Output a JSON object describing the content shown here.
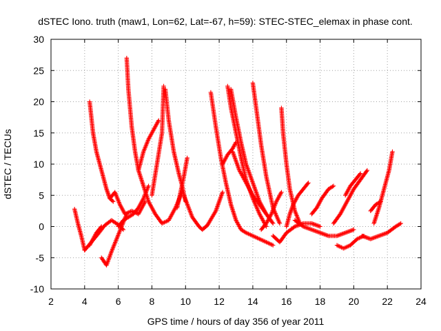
{
  "chart_data": {
    "type": "scatter",
    "title": "dSTEC Iono. truth (maw1, Lon=62, Lat=-67, h=59): STEC-STEC_elemax in phase cont.",
    "xlabel": "GPS time / hours of day 356 of year 2011",
    "ylabel": "dSTEC  / TECUs",
    "xlim": [
      2,
      24
    ],
    "ylim": [
      -10,
      30
    ],
    "xticks": [
      2,
      4,
      6,
      8,
      10,
      12,
      14,
      16,
      18,
      20,
      22,
      24
    ],
    "yticks": [
      -10,
      -5,
      0,
      5,
      10,
      15,
      20,
      25,
      30
    ],
    "grid": true,
    "marker": "plus",
    "color": "#ff0000",
    "series": [
      {
        "x": [
          3.4,
          3.6,
          3.8,
          4.0
        ],
        "y": [
          2.8,
          0.5,
          -1.5,
          -3.8
        ]
      },
      {
        "x": [
          4.0,
          4.4,
          4.8,
          5.2,
          5.6,
          6.0,
          6.3
        ],
        "y": [
          -3.8,
          -2.5,
          -1.2,
          0.2,
          1.0,
          0.3,
          -0.5
        ]
      },
      {
        "x": [
          4.3,
          4.5,
          4.7,
          4.9,
          5.1,
          5.3,
          5.5,
          5.7
        ],
        "y": [
          20.0,
          15.0,
          12.0,
          10.0,
          8.0,
          6.0,
          4.5,
          4.0
        ]
      },
      {
        "x": [
          4.3,
          4.5,
          4.7,
          5.0
        ],
        "y": [
          -3.0,
          -2.0,
          -1.0,
          0.0
        ]
      },
      {
        "x": [
          5.0,
          5.3,
          5.6,
          5.9,
          6.2,
          6.5
        ],
        "y": [
          -5.0,
          -6.2,
          -4.0,
          -2.0,
          0.0,
          2.0
        ]
      },
      {
        "x": [
          5.5,
          5.8,
          6.1,
          6.4,
          6.8,
          7.2,
          7.6
        ],
        "y": [
          4.5,
          5.5,
          3.5,
          2.0,
          2.5,
          2.0,
          4.0
        ]
      },
      {
        "x": [
          6.5,
          6.6,
          6.8,
          7.0,
          7.2,
          7.5,
          7.8,
          8.2,
          8.6,
          9.0,
          9.4,
          9.8
        ],
        "y": [
          27.0,
          22.0,
          16.0,
          12.0,
          9.0,
          6.5,
          4.0,
          2.0,
          0.5,
          1.0,
          3.0,
          5.5
        ]
      },
      {
        "x": [
          6.0,
          6.3,
          6.6,
          6.9,
          7.2,
          7.5,
          7.8
        ],
        "y": [
          0.0,
          1.0,
          1.5,
          2.0,
          3.0,
          4.5,
          6.5
        ]
      },
      {
        "x": [
          7.2,
          7.5,
          7.8,
          8.1,
          8.4
        ],
        "y": [
          9.0,
          12.0,
          14.0,
          15.5,
          17.0
        ]
      },
      {
        "x": [
          8.0,
          8.3,
          8.6,
          8.7
        ],
        "y": [
          5.0,
          10.0,
          15.0,
          22.5
        ]
      },
      {
        "x": [
          8.8,
          9.0,
          9.3,
          9.6,
          9.8,
          10.0
        ],
        "y": [
          22.0,
          17.0,
          12.0,
          8.5,
          6.5,
          4.0
        ]
      },
      {
        "x": [
          9.5,
          9.7,
          9.9,
          10.1
        ],
        "y": [
          3.0,
          5.5,
          8.0,
          11.0
        ]
      },
      {
        "x": [
          9.9,
          10.4,
          10.8,
          11.0,
          11.3,
          11.8,
          12.2
        ],
        "y": [
          5.0,
          1.5,
          0.0,
          -0.5,
          0.2,
          2.5,
          5.5
        ]
      },
      {
        "x": [
          11.5,
          11.8,
          12.1,
          12.4,
          12.7,
          13.0,
          13.3,
          13.6,
          14.0,
          14.4,
          14.8,
          15.2
        ],
        "y": [
          21.5,
          16.0,
          11.0,
          7.0,
          3.5,
          1.0,
          -0.5,
          -1.0,
          -1.5,
          -2.0,
          -2.5,
          -3.0
        ]
      },
      {
        "x": [
          12.5,
          12.7,
          13.0,
          13.3,
          13.6,
          14.0,
          14.4,
          14.8
        ],
        "y": [
          22.5,
          19.0,
          15.0,
          11.0,
          7.5,
          4.5,
          2.0,
          0.0
        ]
      },
      {
        "x": [
          12.7,
          13.0,
          13.3,
          13.6,
          14.0,
          14.4,
          14.8,
          15.2
        ],
        "y": [
          22.0,
          17.5,
          13.5,
          10.0,
          7.0,
          4.0,
          2.0,
          0.5
        ]
      },
      {
        "x": [
          12.8,
          13.2,
          13.6,
          14.0,
          14.4,
          14.8
        ],
        "y": [
          12.0,
          9.0,
          7.0,
          5.0,
          3.5,
          2.0
        ]
      },
      {
        "x": [
          12.2,
          12.5,
          12.8,
          13.0
        ],
        "y": [
          10.0,
          11.5,
          12.5,
          13.5
        ]
      },
      {
        "x": [
          14.0,
          14.2,
          14.5,
          14.8,
          15.2,
          15.6
        ],
        "y": [
          23.0,
          19.0,
          13.0,
          8.0,
          3.0,
          0.5
        ]
      },
      {
        "x": [
          14.5,
          14.8,
          15.1,
          15.4,
          15.7
        ],
        "y": [
          -0.5,
          0.5,
          2.0,
          4.0,
          5.5
        ]
      },
      {
        "x": [
          15.7,
          15.8,
          16.0,
          16.2,
          16.5,
          16.8
        ],
        "y": [
          19.0,
          15.0,
          10.0,
          6.0,
          2.5,
          0.5
        ]
      },
      {
        "x": [
          16.0,
          16.2,
          16.4,
          16.7,
          17.0,
          17.3
        ],
        "y": [
          0.0,
          2.0,
          3.5,
          5.0,
          6.0,
          7.0
        ]
      },
      {
        "x": [
          15.2,
          15.6,
          16.0,
          16.5,
          17.0,
          17.5,
          18.0
        ],
        "y": [
          -1.5,
          -2.5,
          -1.0,
          0.0,
          0.5,
          0.5,
          0.0
        ]
      },
      {
        "x": [
          16.5,
          17.0,
          17.5,
          18.0,
          18.5,
          19.0,
          19.5,
          20.0
        ],
        "y": [
          1.0,
          0.0,
          -0.5,
          -1.0,
          -1.5,
          -1.5,
          -1.0,
          -0.5
        ]
      },
      {
        "x": [
          17.5,
          17.8,
          18.1,
          18.5,
          18.8
        ],
        "y": [
          2.0,
          3.0,
          4.5,
          6.0,
          6.5
        ]
      },
      {
        "x": [
          19.0,
          19.4,
          19.8,
          20.2,
          20.6
        ],
        "y": [
          -3.0,
          -3.5,
          -3.0,
          -2.0,
          -1.5
        ]
      },
      {
        "x": [
          18.8,
          19.2,
          19.6,
          20.0,
          20.4,
          20.8
        ],
        "y": [
          0.5,
          2.0,
          4.0,
          6.0,
          7.5,
          9.0
        ]
      },
      {
        "x": [
          19.5,
          19.8,
          20.1,
          20.4
        ],
        "y": [
          5.0,
          6.5,
          7.5,
          8.5
        ]
      },
      {
        "x": [
          20.5,
          21.0,
          21.5,
          22.0,
          22.5,
          22.8
        ],
        "y": [
          -1.5,
          -2.0,
          -1.5,
          -1.0,
          0.0,
          0.5
        ]
      },
      {
        "x": [
          21.2,
          21.5,
          21.8,
          22.1,
          22.3
        ],
        "y": [
          0.5,
          3.0,
          6.0,
          9.0,
          12.0
        ]
      },
      {
        "x": [
          21.0,
          21.3,
          21.6
        ],
        "y": [
          2.5,
          3.5,
          4.0
        ]
      }
    ]
  }
}
